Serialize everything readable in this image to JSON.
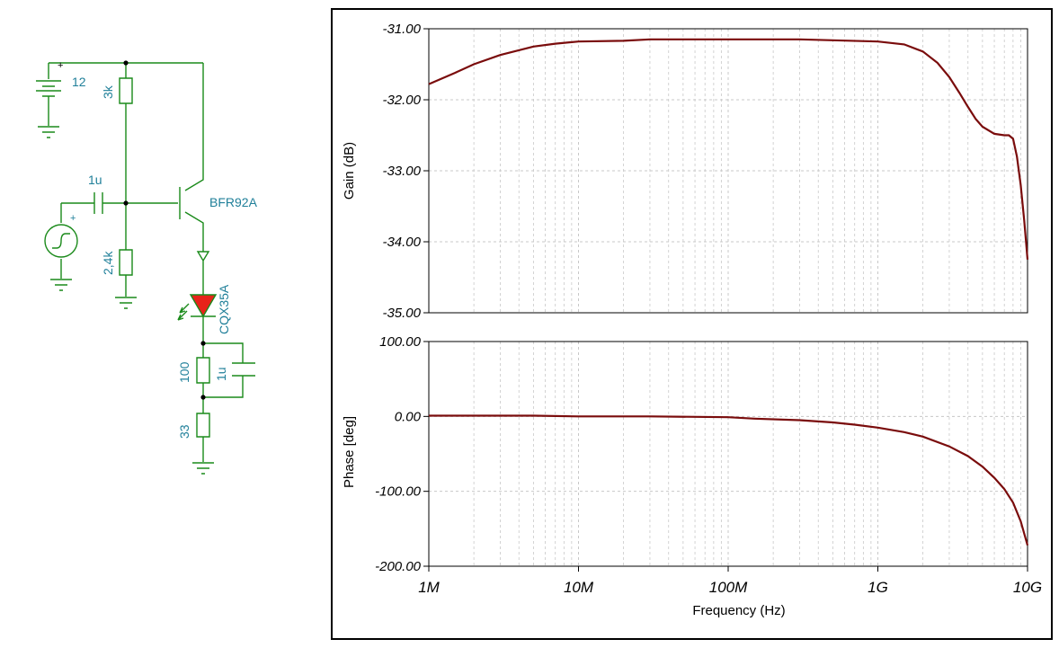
{
  "schematic": {
    "supply_voltage": "12",
    "supply_plus": "+",
    "source_plus": "+",
    "r_collector": "3k",
    "r_bias_low": "2,4k",
    "c_input": "1u",
    "transistor": "BFR92A",
    "led": "CQX35A",
    "r_emitter_top": "100",
    "c_emitter": "1u",
    "r_emitter_bottom": "33"
  },
  "colors": {
    "wire": "#1a8a1a",
    "label": "#1f7f99",
    "led": "#e8231a",
    "curve": "#7a0c0c",
    "grid": "#c8c8c8"
  },
  "chart_data": [
    {
      "type": "line",
      "xscale": "log",
      "xlim": [
        1000000,
        10000000000
      ],
      "ylim": [
        -35,
        -31
      ],
      "ylabel": "Gain (dB)",
      "yticks": [
        "-31.00",
        "-32.00",
        "-33.00",
        "-34.00",
        "-35.00"
      ],
      "ytick_values": [
        -31,
        -32,
        -33,
        -34,
        -35
      ],
      "grid": true,
      "series": [
        {
          "x": [
            1000000,
            1500000,
            2000000,
            3000000,
            5000000,
            7000000,
            10000000,
            20000000,
            30000000,
            100000000,
            300000000,
            1000000000,
            1500000000,
            2000000000,
            2500000000,
            3000000000,
            3500000000,
            4000000000,
            4500000000,
            5000000000,
            6000000000,
            7000000000,
            7500000000,
            8000000000,
            8500000000,
            9000000000,
            9500000000,
            10000000000
          ],
          "y": [
            -31.78,
            -31.62,
            -31.5,
            -31.37,
            -31.25,
            -31.21,
            -31.18,
            -31.17,
            -31.15,
            -31.15,
            -31.15,
            -31.18,
            -31.22,
            -31.32,
            -31.48,
            -31.68,
            -31.9,
            -32.1,
            -32.27,
            -32.38,
            -32.48,
            -32.5,
            -32.5,
            -32.55,
            -32.8,
            -33.2,
            -33.7,
            -34.25
          ]
        }
      ]
    },
    {
      "type": "line",
      "xscale": "log",
      "xlim": [
        1000000,
        10000000000
      ],
      "ylim": [
        -200,
        100
      ],
      "xlabel": "Frequency (Hz)",
      "ylabel": "Phase [deg]",
      "xticks": [
        "1M",
        "10M",
        "100M",
        "1G",
        "10G"
      ],
      "xtick_values": [
        1000000,
        10000000,
        100000000,
        1000000000,
        10000000000
      ],
      "yticks": [
        "100.00",
        "0.00",
        "-100.00",
        "-200.00"
      ],
      "ytick_values": [
        100,
        0,
        -100,
        -200
      ],
      "grid": true,
      "series": [
        {
          "x": [
            1000000,
            5000000,
            10000000,
            30000000,
            100000000,
            150000000,
            300000000,
            500000000,
            700000000,
            1000000000,
            1500000000,
            2000000000,
            3000000000,
            4000000000,
            5000000000,
            6000000000,
            7000000000,
            8000000000,
            9000000000,
            10000000000
          ],
          "y": [
            1,
            1,
            0,
            0,
            -1,
            -3,
            -5,
            -8,
            -11,
            -15,
            -21,
            -27,
            -40,
            -53,
            -67,
            -82,
            -97,
            -115,
            -140,
            -172
          ]
        }
      ]
    }
  ]
}
